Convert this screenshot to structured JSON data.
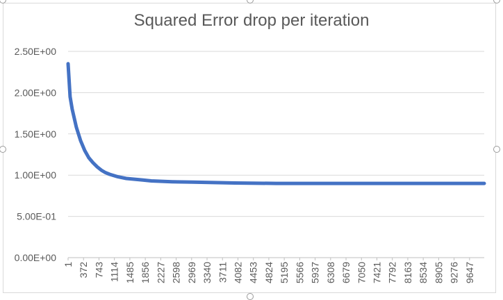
{
  "chart_data": {
    "type": "line",
    "title": "Squared Error drop per iteration",
    "xlabel": "",
    "ylabel": "",
    "x_ticks": [
      "1",
      "372",
      "743",
      "1114",
      "1485",
      "1856",
      "2227",
      "2598",
      "2969",
      "3340",
      "3711",
      "4082",
      "4453",
      "4824",
      "5195",
      "5566",
      "5937",
      "6308",
      "6679",
      "7050",
      "7421",
      "7792",
      "8163",
      "8534",
      "8905",
      "9276",
      "9647"
    ],
    "y_ticks": [
      "0.00E+00",
      "5.00E-01",
      "1.00E+00",
      "1.50E+00",
      "2.00E+00",
      "2.50E+00"
    ],
    "ylim": [
      0,
      2.5
    ],
    "xlim": [
      1,
      10000
    ],
    "grid": true,
    "legend": "none",
    "series": [
      {
        "color": "#4472c4",
        "x": [
          1,
          50,
          100,
          200,
          300,
          400,
          500,
          600,
          700,
          800,
          900,
          1000,
          1200,
          1400,
          1600,
          1800,
          2000,
          2500,
          3000,
          3500,
          4000,
          5000,
          6000,
          7000,
          8000,
          9000,
          10000
        ],
        "y": [
          2.35,
          1.95,
          1.8,
          1.58,
          1.42,
          1.3,
          1.21,
          1.15,
          1.1,
          1.06,
          1.03,
          1.01,
          0.98,
          0.96,
          0.95,
          0.94,
          0.93,
          0.92,
          0.915,
          0.91,
          0.905,
          0.9,
          0.9,
          0.9,
          0.9,
          0.9,
          0.9
        ]
      }
    ]
  }
}
